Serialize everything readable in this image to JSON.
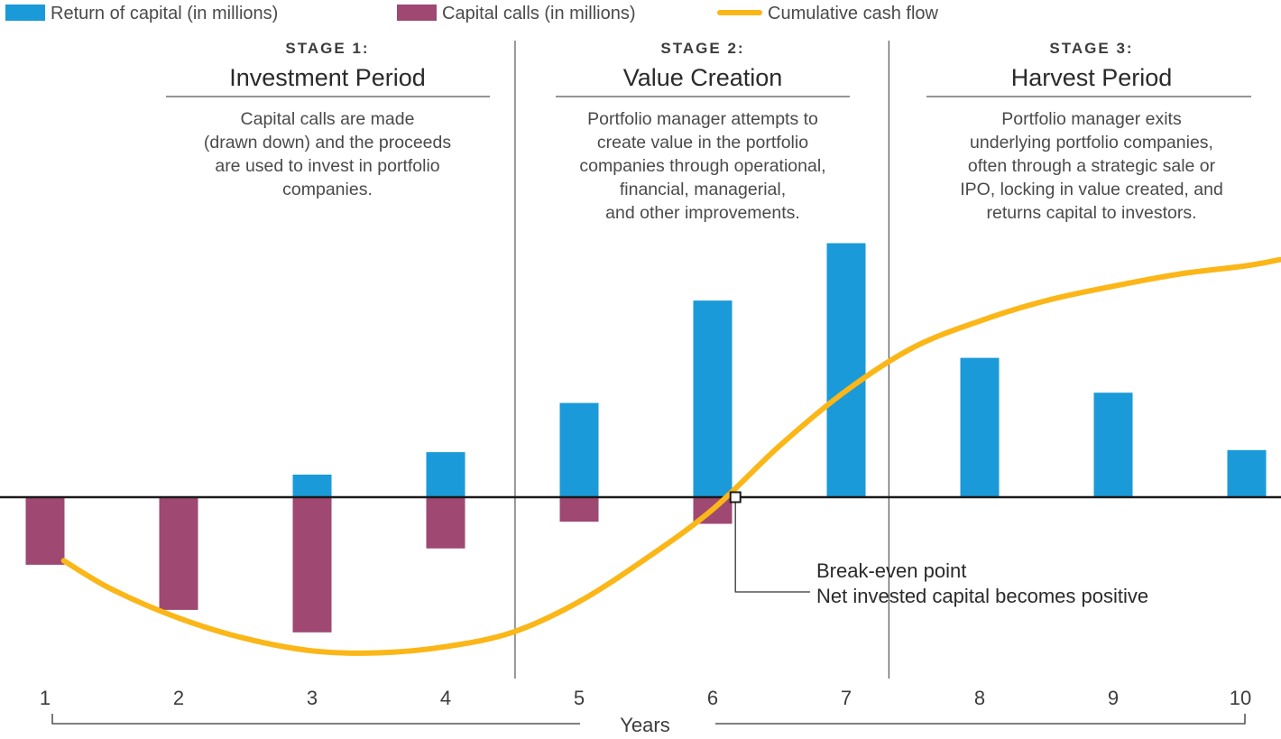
{
  "chart_data": {
    "type": "bar",
    "xlabel": "Years",
    "x": [
      1,
      2,
      3,
      4,
      5,
      6,
      7,
      8,
      9,
      10
    ],
    "x_tick_labels": [
      "1",
      "2",
      "3",
      "4",
      "5",
      "6",
      "7",
      "8",
      "9",
      "10"
    ],
    "ylim": [
      -8,
      12
    ],
    "series": [
      {
        "name": "Return of capital (in millions)",
        "kind": "bar",
        "color": "#1a9ad9",
        "offset": 0.0,
        "points": [
          [
            3,
            1.1
          ],
          [
            4,
            2.2
          ],
          [
            5,
            4.6
          ],
          [
            6,
            9.6
          ],
          [
            7,
            12.4
          ],
          [
            8,
            6.8
          ],
          [
            9,
            5.1
          ],
          [
            10,
            2.3
          ]
        ]
      },
      {
        "name": "Capital calls (in millions)",
        "kind": "bar",
        "color": "#9e4872",
        "offset": -0.28,
        "points": [
          [
            1.28,
            -3.3
          ],
          [
            2.28,
            -5.5
          ],
          [
            3.28,
            -6.6
          ],
          [
            4.28,
            -2.5
          ],
          [
            5.28,
            -1.2
          ],
          [
            6.28,
            -1.3
          ]
        ]
      },
      {
        "name": "Cumulative cash flow",
        "kind": "line",
        "color": "#fbb617",
        "points": [
          [
            1.14,
            -3.1
          ],
          [
            1.5,
            -4.5
          ],
          [
            2,
            -5.9
          ],
          [
            2.5,
            -6.9
          ],
          [
            3,
            -7.5
          ],
          [
            3.5,
            -7.6
          ],
          [
            4,
            -7.3
          ],
          [
            4.5,
            -6.6
          ],
          [
            5,
            -5.1
          ],
          [
            5.5,
            -3.0
          ],
          [
            6,
            -0.6
          ],
          [
            6.5,
            2.5
          ],
          [
            7,
            5.2
          ],
          [
            7.5,
            7.3
          ],
          [
            8,
            8.6
          ],
          [
            8.5,
            9.6
          ],
          [
            9,
            10.3
          ],
          [
            9.5,
            10.9
          ],
          [
            10,
            11.3
          ],
          [
            10.25,
            11.6
          ]
        ]
      }
    ],
    "stage_dividers": [
      4.52,
      7.32
    ],
    "stages": [
      {
        "label": "STAGE 1:",
        "title": "Investment Period",
        "description": [
          "Capital calls are made",
          "(drawn down) and the proceeds",
          "are used to invest in portfolio",
          "companies."
        ]
      },
      {
        "label": "STAGE 2:",
        "title": "Value Creation",
        "description": [
          "Portfolio manager attempts to",
          "create value in the portfolio",
          "companies through operational,",
          "financial, managerial,",
          "and other improvements."
        ]
      },
      {
        "label": "STAGE 3:",
        "title": "Harvest Period",
        "description": [
          "Portfolio manager exits",
          "underlying portfolio companies,",
          "often through a strategic sale or",
          "IPO, locking in value created, and",
          "returns capital to investors."
        ]
      }
    ],
    "break_even": {
      "x": 6.17,
      "y": 0,
      "label_line1": "Break-even point",
      "label_line2": "Net invested capital becomes positive"
    },
    "legend": [
      {
        "label": "Return of capital (in millions)",
        "marker": "box",
        "color": "#1a9ad9"
      },
      {
        "label": "Capital calls (in millions)",
        "marker": "box",
        "color": "#9e4872"
      },
      {
        "label": "Cumulative cash flow",
        "marker": "line",
        "color": "#fbb617"
      }
    ]
  }
}
